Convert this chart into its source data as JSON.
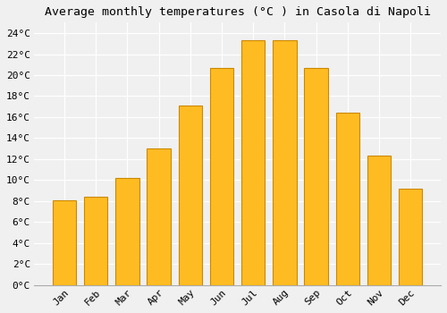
{
  "title": "Average monthly temperatures (°C ) in Casola di Napoli",
  "months": [
    "Jan",
    "Feb",
    "Mar",
    "Apr",
    "May",
    "Jun",
    "Jul",
    "Aug",
    "Sep",
    "Oct",
    "Nov",
    "Dec"
  ],
  "temperatures": [
    8.1,
    8.4,
    10.2,
    13.0,
    17.1,
    20.7,
    23.3,
    23.3,
    20.7,
    16.4,
    12.3,
    9.2
  ],
  "bar_color": "#FFBB22",
  "bar_edge_color": "#CC8800",
  "background_color": "#F0F0F0",
  "plot_bg_color": "#F0F0F0",
  "grid_color": "#FFFFFF",
  "title_fontsize": 9.5,
  "tick_fontsize": 8,
  "ylim": [
    0,
    25
  ],
  "ytick_step": 2
}
